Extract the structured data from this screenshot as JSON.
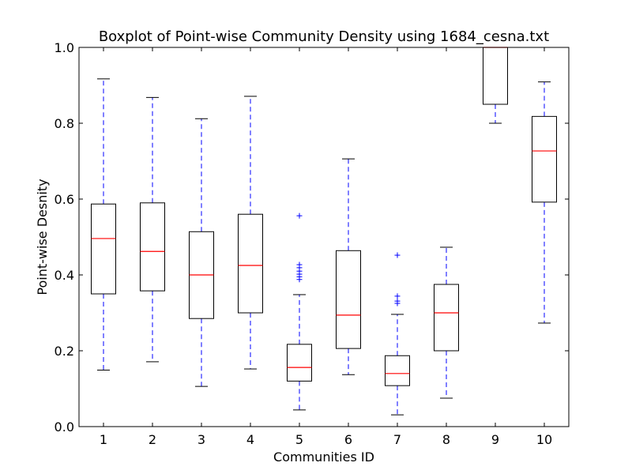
{
  "chart_data": {
    "type": "boxplot",
    "title": "Boxplot of Point-wise Community Density using 1684_cesna.txt",
    "xlabel": "Communities ID",
    "ylabel": "Point-wise Desnity",
    "ylim": [
      0.0,
      1.0
    ],
    "yticks": [
      "0.0",
      "0.2",
      "0.4",
      "0.6",
      "0.8",
      "1.0"
    ],
    "categories": [
      "1",
      "2",
      "3",
      "4",
      "5",
      "6",
      "7",
      "8",
      "9",
      "10"
    ],
    "grid": false,
    "boxes": [
      {
        "id": "1",
        "whisker_low": 0.149,
        "q1": 0.35,
        "median": 0.496,
        "q3": 0.587,
        "whisker_high": 0.917,
        "outliers": []
      },
      {
        "id": "2",
        "whisker_low": 0.171,
        "q1": 0.358,
        "median": 0.462,
        "q3": 0.59,
        "whisker_high": 0.868,
        "outliers": []
      },
      {
        "id": "3",
        "whisker_low": 0.106,
        "q1": 0.285,
        "median": 0.4,
        "q3": 0.514,
        "whisker_high": 0.812,
        "outliers": []
      },
      {
        "id": "4",
        "whisker_low": 0.152,
        "q1": 0.3,
        "median": 0.425,
        "q3": 0.56,
        "whisker_high": 0.871,
        "outliers": []
      },
      {
        "id": "5",
        "whisker_low": 0.044,
        "q1": 0.12,
        "median": 0.156,
        "q3": 0.217,
        "whisker_high": 0.348,
        "outliers": [
          0.556,
          0.427,
          0.419,
          0.41,
          0.402,
          0.395,
          0.388
        ]
      },
      {
        "id": "6",
        "whisker_low": 0.137,
        "q1": 0.206,
        "median": 0.294,
        "q3": 0.464,
        "whisker_high": 0.706,
        "outliers": []
      },
      {
        "id": "7",
        "whisker_low": 0.031,
        "q1": 0.108,
        "median": 0.14,
        "q3": 0.187,
        "whisker_high": 0.296,
        "outliers": [
          0.452,
          0.344,
          0.331,
          0.325
        ]
      },
      {
        "id": "8",
        "whisker_low": 0.075,
        "q1": 0.2,
        "median": 0.3,
        "q3": 0.375,
        "whisker_high": 0.473,
        "outliers": []
      },
      {
        "id": "9",
        "whisker_low": 0.8,
        "q1": 0.85,
        "median": 1.0,
        "q3": 1.0,
        "whisker_high": 1.0,
        "outliers": []
      },
      {
        "id": "10",
        "whisker_low": 0.273,
        "q1": 0.592,
        "median": 0.727,
        "q3": 0.818,
        "whisker_high": 0.909,
        "outliers": []
      }
    ],
    "colors": {
      "box": "#000000",
      "median": "#ff0000",
      "whisker": "#0000ff",
      "flier": "#0000ff",
      "cap": "#000000"
    }
  }
}
